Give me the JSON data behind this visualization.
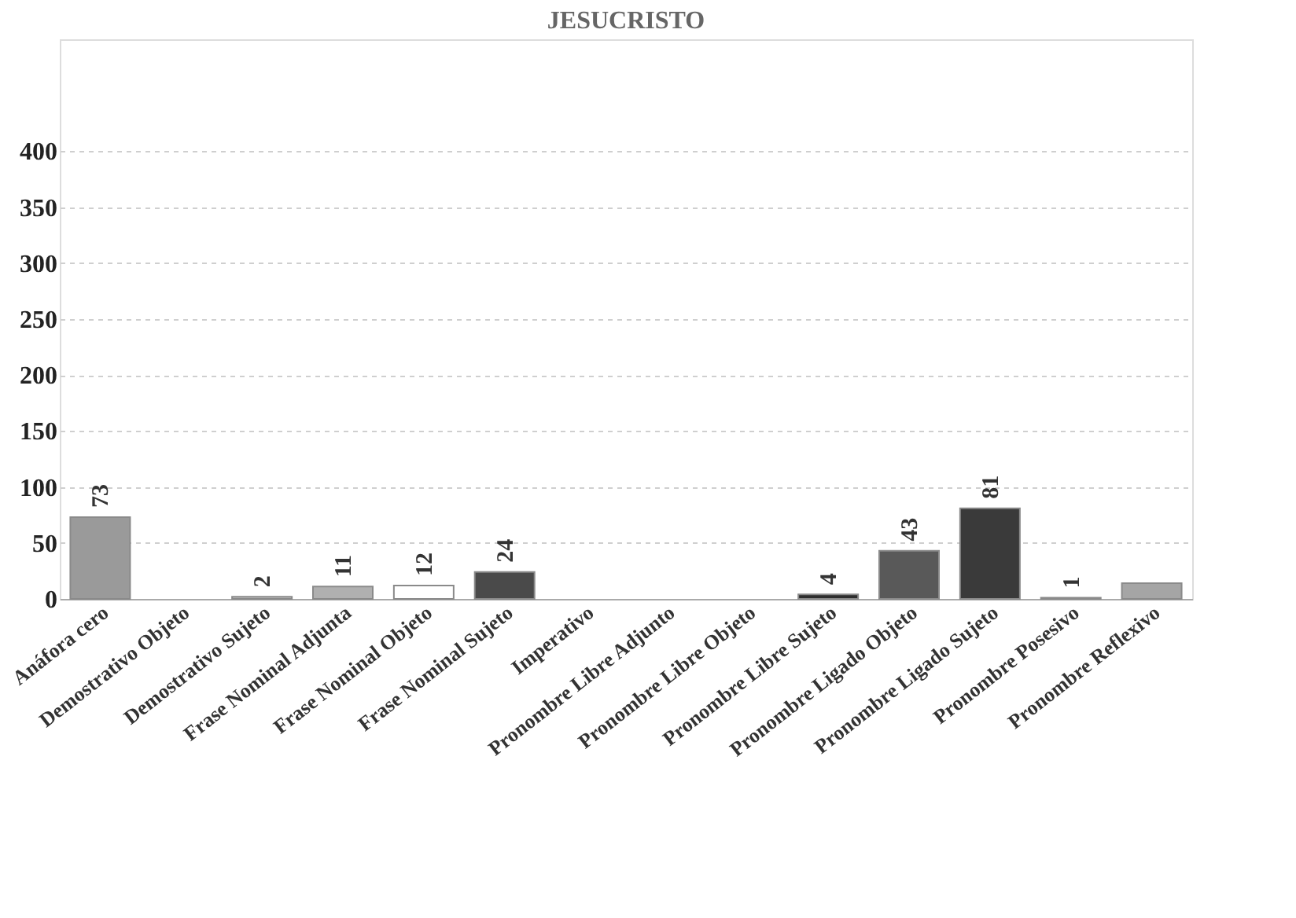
{
  "chart_data": {
    "type": "bar",
    "title": "JESUCRISTO",
    "categories": [
      "Anáfora cero",
      "Demostrativo Objeto",
      "Demostrativo Sujeto",
      "Frase Nominal Adjunta",
      "Frase Nominal Objeto",
      "Frase Nominal Sujeto",
      "Imperativo",
      "Pronombre Libre Adjunto",
      "Pronombre Libre Objeto",
      "Pronombre Libre Sujeto",
      "Pronombre Ligado Objeto",
      "Pronombre Ligado Sujeto",
      "Pronombre Posesivo",
      "Pronombre Reflexivo"
    ],
    "values": [
      73,
      0,
      2,
      11,
      12,
      24,
      0,
      0,
      0,
      4,
      43,
      81,
      1,
      14
    ],
    "colors": [
      "#9a9a9a",
      "#7f7f7f",
      "#bdbdbd",
      "#b0b0b0",
      "#ffffff",
      "#4a4a4a",
      "#7f7f7f",
      "#7f7f7f",
      "#7f7f7f",
      "#2e2e2e",
      "#595959",
      "#3a3a3a",
      "#d0d0d0",
      "#a5a5a5"
    ],
    "value_labels": [
      "73",
      null,
      "2",
      "11",
      "12",
      "24",
      null,
      null,
      null,
      "4",
      "43",
      "81",
      "1",
      null
    ],
    "ylim": [
      0,
      500
    ],
    "yticks": [
      0,
      50,
      100,
      150,
      200,
      250,
      300,
      350,
      400
    ],
    "grid": "y"
  }
}
